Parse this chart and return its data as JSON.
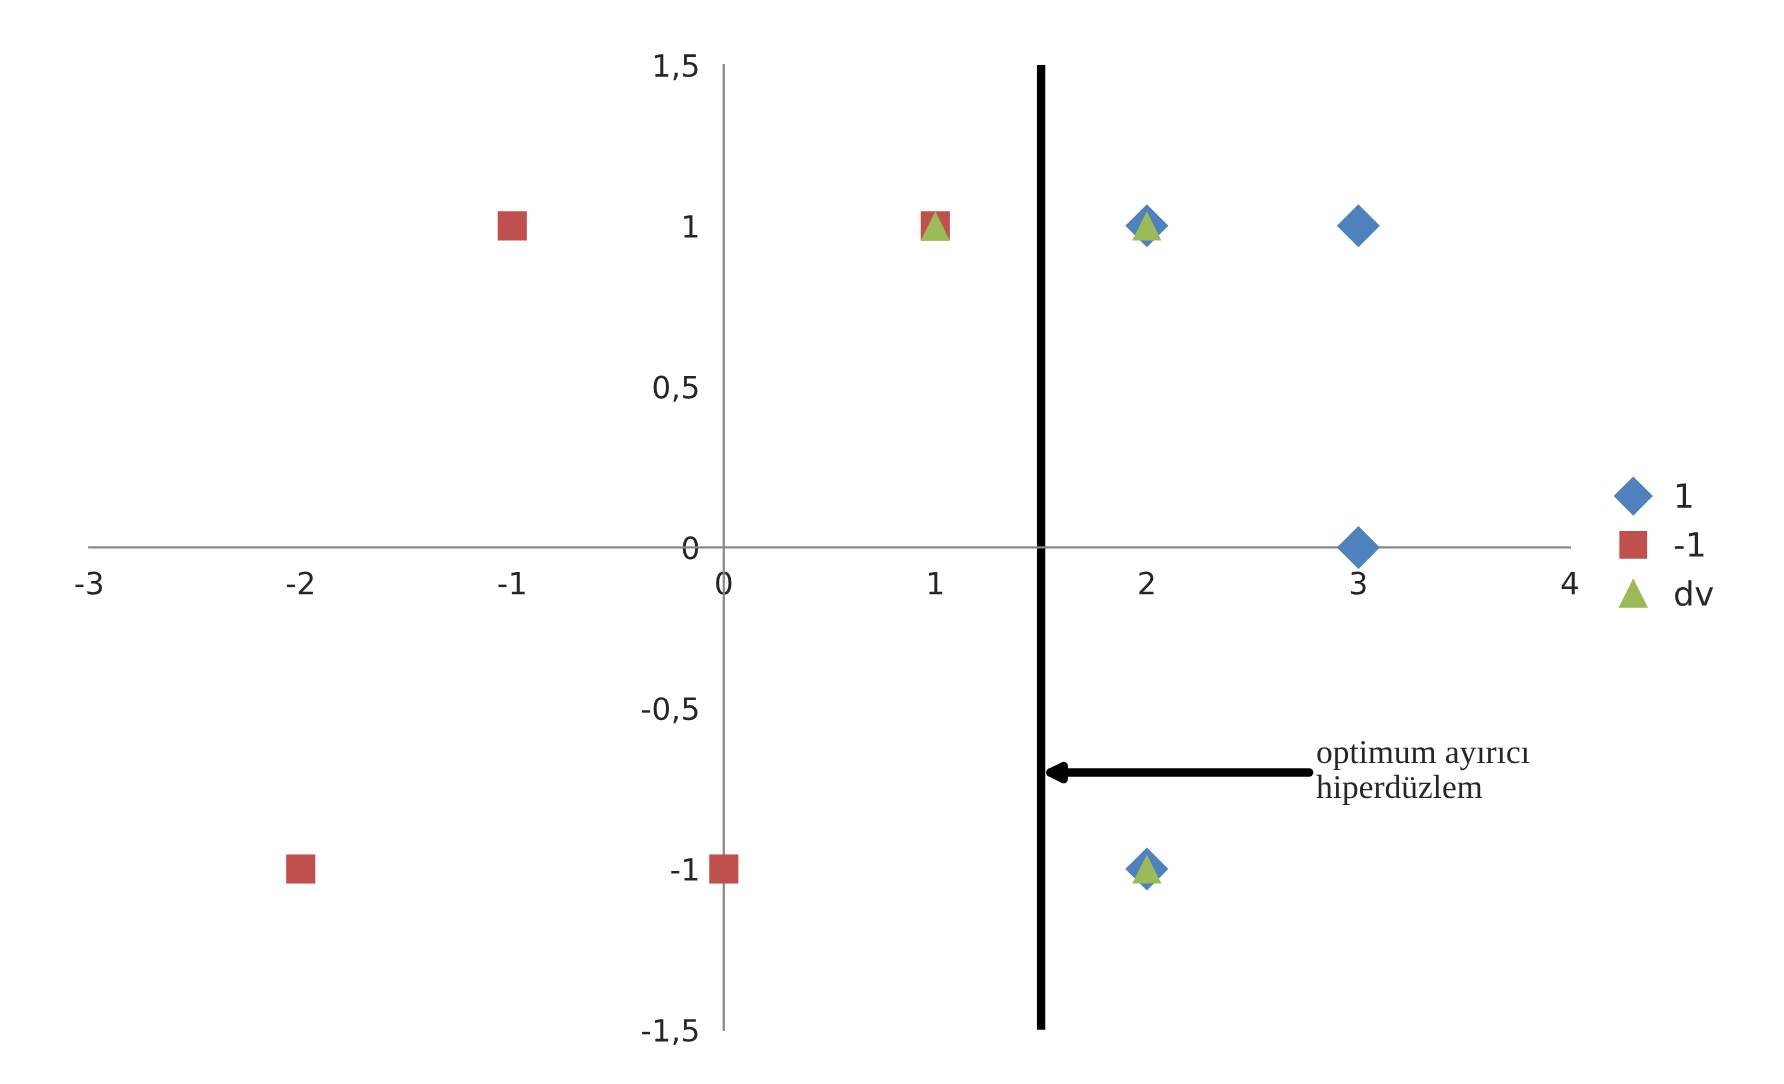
{
  "chart_data": {
    "type": "scatter",
    "xlim": [
      -3,
      4
    ],
    "ylim": [
      -1.5,
      1.5
    ],
    "xticks": [
      -3,
      -2,
      -1,
      0,
      1,
      2,
      3,
      4
    ],
    "yticks": [
      {
        "value": -1.5,
        "label": "-1,5"
      },
      {
        "value": -1,
        "label": "-1"
      },
      {
        "value": -0.5,
        "label": "-0,5"
      },
      {
        "value": 0,
        "label": "0"
      },
      {
        "value": 0.5,
        "label": "0,5"
      },
      {
        "value": 1,
        "label": "1"
      },
      {
        "value": 1.5,
        "label": "1,5"
      }
    ],
    "grid": false,
    "legend": "right",
    "series": [
      {
        "name": "1",
        "color": "#4f81bd",
        "marker": "diamond",
        "x": [
          2,
          2,
          3,
          3
        ],
        "values": [
          1,
          -1,
          1,
          0
        ]
      },
      {
        "name": "-1",
        "color": "#c0504d",
        "marker": "square",
        "x": [
          -1,
          1,
          -2,
          0
        ],
        "values": [
          1,
          1,
          -1,
          -1
        ]
      },
      {
        "name": "dv",
        "color": "#9bbb59",
        "marker": "triangle",
        "x": [
          1,
          2,
          2
        ],
        "values": [
          1,
          1,
          -1
        ]
      }
    ],
    "ref_lines": [
      {
        "axis": "x",
        "value": 1.5,
        "color": "#000000",
        "line_style": "solid"
      }
    ],
    "annotations": [
      {
        "text": "optimum ayırıcı\nhiperdüzlem",
        "x": 1.5,
        "y": -0.7
      }
    ]
  }
}
